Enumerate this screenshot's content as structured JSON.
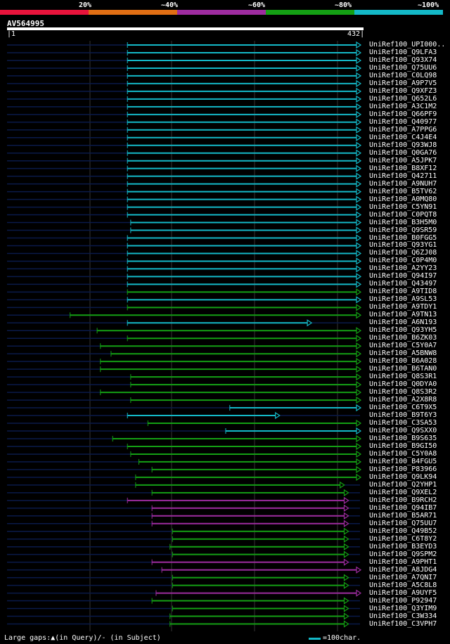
{
  "legend": {
    "labels": [
      "20%",
      "~40%",
      "~60%",
      "~80%",
      "~100%"
    ],
    "colors": [
      "#e8143c",
      "#e06e14",
      "#9e2ca0",
      "#14a014",
      "#14b9c8"
    ]
  },
  "query": {
    "name": "AV564995",
    "start": "1",
    "end": "432"
  },
  "footer": {
    "gaps_text": "Large gaps:▲(in Query)/- (in Subject)",
    "scale_text": "=100char."
  },
  "hits": [
    {
      "name": "UniRef100_UPI000..",
      "start": 148,
      "end": 432,
      "cat": 4
    },
    {
      "name": "UniRef100_Q9LFA3",
      "start": 148,
      "end": 432,
      "cat": 4
    },
    {
      "name": "UniRef100_Q93X74",
      "start": 148,
      "end": 432,
      "cat": 4
    },
    {
      "name": "UniRef100_Q75UU6",
      "start": 148,
      "end": 432,
      "cat": 4
    },
    {
      "name": "UniRef100_C0LQ98",
      "start": 148,
      "end": 432,
      "cat": 4
    },
    {
      "name": "UniRef100_A9P7V5",
      "start": 148,
      "end": 432,
      "cat": 4
    },
    {
      "name": "UniRef100_Q9XFZ3",
      "start": 148,
      "end": 432,
      "cat": 4
    },
    {
      "name": "UniRef100_Q652L6",
      "start": 148,
      "end": 432,
      "cat": 4
    },
    {
      "name": "UniRef100_A3C1M2",
      "start": 148,
      "end": 432,
      "cat": 4
    },
    {
      "name": "UniRef100_Q66PF9",
      "start": 148,
      "end": 432,
      "cat": 4
    },
    {
      "name": "UniRef100_Q40977",
      "start": 148,
      "end": 432,
      "cat": 4
    },
    {
      "name": "UniRef100_A7PPG6",
      "start": 148,
      "end": 432,
      "cat": 4
    },
    {
      "name": "UniRef100_C4J4E4",
      "start": 148,
      "end": 432,
      "cat": 4
    },
    {
      "name": "UniRef100_Q93WJ8",
      "start": 148,
      "end": 432,
      "cat": 4
    },
    {
      "name": "UniRef100_Q0GA76",
      "start": 148,
      "end": 432,
      "cat": 4
    },
    {
      "name": "UniRef100_A5JPK7",
      "start": 148,
      "end": 432,
      "cat": 4
    },
    {
      "name": "UniRef100_B8XF12",
      "start": 148,
      "end": 432,
      "cat": 4
    },
    {
      "name": "UniRef100_Q42711",
      "start": 148,
      "end": 432,
      "cat": 4
    },
    {
      "name": "UniRef100_A9NUH7",
      "start": 148,
      "end": 432,
      "cat": 4
    },
    {
      "name": "UniRef100_B5TV62",
      "start": 148,
      "end": 432,
      "cat": 4
    },
    {
      "name": "UniRef100_A0MQ80",
      "start": 148,
      "end": 432,
      "cat": 4
    },
    {
      "name": "UniRef100_C5YN91",
      "start": 148,
      "end": 432,
      "cat": 4
    },
    {
      "name": "UniRef100_C0PQT8",
      "start": 148,
      "end": 432,
      "cat": 4
    },
    {
      "name": "UniRef100_B3H5M0",
      "start": 152,
      "end": 432,
      "cat": 4
    },
    {
      "name": "UniRef100_Q9SR59",
      "start": 152,
      "end": 432,
      "cat": 4
    },
    {
      "name": "UniRef100_B0FGG5",
      "start": 148,
      "end": 432,
      "cat": 4
    },
    {
      "name": "UniRef100_Q93YG1",
      "start": 148,
      "end": 432,
      "cat": 4
    },
    {
      "name": "UniRef100_Q6ZJ08",
      "start": 148,
      "end": 432,
      "cat": 4
    },
    {
      "name": "UniRef100_C0P4M0",
      "start": 148,
      "end": 432,
      "cat": 4
    },
    {
      "name": "UniRef100_A2YY23",
      "start": 148,
      "end": 432,
      "cat": 4
    },
    {
      "name": "UniRef100_Q94I97",
      "start": 148,
      "end": 432,
      "cat": 4
    },
    {
      "name": "UniRef100_Q43497",
      "start": 148,
      "end": 432,
      "cat": 4
    },
    {
      "name": "UniRef100_A9TID8",
      "start": 148,
      "end": 432,
      "cat": 3
    },
    {
      "name": "UniRef100_A9SL53",
      "start": 148,
      "end": 432,
      "cat": 4
    },
    {
      "name": "UniRef100_A9TDY1",
      "start": 148,
      "end": 432,
      "cat": 3
    },
    {
      "name": "UniRef100_A9TN13",
      "start": 78,
      "end": 432,
      "cat": 3
    },
    {
      "name": "UniRef100_A6N193",
      "start": 148,
      "end": 372,
      "cat": 4
    },
    {
      "name": "UniRef100_Q93YH5",
      "start": 111,
      "end": 432,
      "cat": 3
    },
    {
      "name": "UniRef100_B6ZK03",
      "start": 148,
      "end": 432,
      "cat": 3
    },
    {
      "name": "UniRef100_C5Y0A7",
      "start": 115,
      "end": 432,
      "cat": 3
    },
    {
      "name": "UniRef100_A5BNW8",
      "start": 128,
      "end": 432,
      "cat": 3
    },
    {
      "name": "UniRef100_B6A028",
      "start": 115,
      "end": 432,
      "cat": 3
    },
    {
      "name": "UniRef100_B6TAN0",
      "start": 115,
      "end": 432,
      "cat": 3
    },
    {
      "name": "UniRef100_Q8S3R1",
      "start": 152,
      "end": 432,
      "cat": 3
    },
    {
      "name": "UniRef100_Q0DYA0",
      "start": 152,
      "end": 432,
      "cat": 3
    },
    {
      "name": "UniRef100_Q8S3R2",
      "start": 115,
      "end": 432,
      "cat": 3
    },
    {
      "name": "UniRef100_A2X8R8",
      "start": 152,
      "end": 432,
      "cat": 3
    },
    {
      "name": "UniRef100_C6T9X5",
      "start": 273,
      "end": 432,
      "cat": 4
    },
    {
      "name": "UniRef100_B9T6Y3",
      "start": 148,
      "end": 333,
      "cat": 4
    },
    {
      "name": "UniRef100_C3SA53",
      "start": 173,
      "end": 432,
      "cat": 3
    },
    {
      "name": "UniRef100_Q9SXX0",
      "start": 268,
      "end": 432,
      "cat": 4
    },
    {
      "name": "UniRef100_B9S635",
      "start": 130,
      "end": 432,
      "cat": 3
    },
    {
      "name": "UniRef100_B9GI50",
      "start": 148,
      "end": 432,
      "cat": 3
    },
    {
      "name": "UniRef100_C5Y0A8",
      "start": 152,
      "end": 432,
      "cat": 3
    },
    {
      "name": "UniRef100_B4FGU5",
      "start": 162,
      "end": 432,
      "cat": 3
    },
    {
      "name": "UniRef100_P83966",
      "start": 178,
      "end": 432,
      "cat": 3
    },
    {
      "name": "UniRef100_Q9LK94",
      "start": 158,
      "end": 432,
      "cat": 3
    },
    {
      "name": "UniRef100_Q2YHP1",
      "start": 158,
      "end": 412,
      "cat": 3
    },
    {
      "name": "UniRef100_Q9XEL2",
      "start": 178,
      "end": 417,
      "cat": 3
    },
    {
      "name": "UniRef100_B9RCH2",
      "start": 148,
      "end": 417,
      "cat": 2
    },
    {
      "name": "UniRef100_Q94IB7",
      "start": 178,
      "end": 417,
      "cat": 2
    },
    {
      "name": "UniRef100_B5AR71",
      "start": 178,
      "end": 417,
      "cat": 2
    },
    {
      "name": "UniRef100_Q75UU7",
      "start": 178,
      "end": 417,
      "cat": 2
    },
    {
      "name": "UniRef100_Q49B52",
      "start": 203,
      "end": 417,
      "cat": 3
    },
    {
      "name": "UniRef100_C6T8Y2",
      "start": 203,
      "end": 417,
      "cat": 3
    },
    {
      "name": "UniRef100_B3EYD3",
      "start": 200,
      "end": 417,
      "cat": 3
    },
    {
      "name": "UniRef100_Q9SPM2",
      "start": 203,
      "end": 417,
      "cat": 3
    },
    {
      "name": "UniRef100_A9PHT1",
      "start": 178,
      "end": 417,
      "cat": 2
    },
    {
      "name": "UniRef100_A8JDG4",
      "start": 190,
      "end": 432,
      "cat": 2
    },
    {
      "name": "UniRef100_A7QNI7",
      "start": 203,
      "end": 417,
      "cat": 3
    },
    {
      "name": "UniRef100_A5C8L8",
      "start": 203,
      "end": 417,
      "cat": 3
    },
    {
      "name": "UniRef100_A9UYF5",
      "start": 183,
      "end": 432,
      "cat": 2
    },
    {
      "name": "UniRef100_P92947",
      "start": 178,
      "end": 417,
      "cat": 3
    },
    {
      "name": "UniRef100_Q3YIM9",
      "start": 203,
      "end": 417,
      "cat": 3
    },
    {
      "name": "UniRef100_C3W334",
      "start": 200,
      "end": 417,
      "cat": 3
    },
    {
      "name": "UniRef100_C3VPH7",
      "start": 200,
      "end": 417,
      "cat": 3
    }
  ]
}
